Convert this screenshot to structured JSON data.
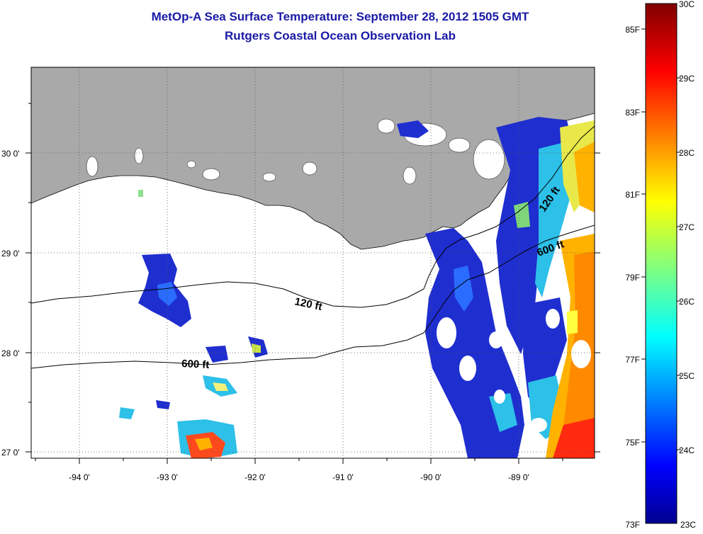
{
  "title": {
    "line1": "MetOp-A Sea Surface Temperature:  September 28, 2012 1505 GMT",
    "line2": "Rutgers Coastal Ocean Observation Lab"
  },
  "axes": {
    "lon_ticks": [
      "-94 0'",
      "-93 0'",
      "-92 0'",
      "-91 0'",
      "-90 0'",
      "-89 0'"
    ],
    "lat_ticks": [
      "30 0'",
      "29 0'",
      "28 0'",
      "27 0'"
    ]
  },
  "contours": {
    "c120_a": "120 ft",
    "c120_b": "120 ft",
    "c600_a": "600 ft",
    "c600_b": "600 ft"
  },
  "colorbar": {
    "celsius": [
      "30C",
      "29C",
      "28C",
      "27C",
      "26C",
      "25C",
      "24C",
      "23C"
    ],
    "fahrenheit": [
      "85F",
      "83F",
      "81F",
      "79F",
      "77F",
      "75F",
      "73F"
    ]
  },
  "colors": {
    "land": "#a9a9a9",
    "title": "#1a1aa6",
    "cloud": "#ffffff"
  },
  "chart_data": {
    "type": "heatmap",
    "title": "MetOp-A Sea Surface Temperature:  September 28, 2012 1505 GMT",
    "subtitle": "Rutgers Coastal Ocean Observation Lab",
    "xlim": [
      -94.5,
      -88.25
    ],
    "ylim": [
      26.95,
      30.85
    ],
    "color_range_c": [
      23,
      30
    ],
    "color_range_f": [
      73,
      86
    ],
    "legend": "right"
  }
}
